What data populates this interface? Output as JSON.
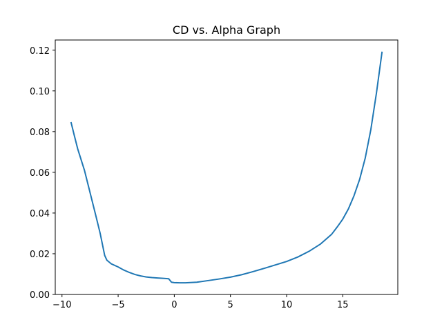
{
  "chart_data": {
    "type": "line",
    "title": "CD vs. Alpha Graph",
    "xlabel": "",
    "ylabel": "",
    "xlim": [
      -10.6,
      19.9
    ],
    "ylim": [
      0.0,
      0.125
    ],
    "x_ticks": [
      -10,
      -5,
      0,
      5,
      10,
      15
    ],
    "y_ticks": [
      0.0,
      0.02,
      0.04,
      0.06,
      0.08,
      0.1,
      0.12
    ],
    "x_tick_labels": [
      "−10",
      "−5",
      "0",
      "5",
      "10",
      "15"
    ],
    "y_tick_labels": [
      "0.00",
      "0.02",
      "0.04",
      "0.06",
      "0.08",
      "0.10",
      "0.12"
    ],
    "grid": false,
    "series": [
      {
        "color": "#1f77b4",
        "x": [
          -9.2,
          -8.9,
          -8.6,
          -8.0,
          -7.5,
          -7.0,
          -6.6,
          -6.2,
          -6.0,
          -5.6,
          -5.0,
          -4.5,
          -4.0,
          -3.5,
          -3.0,
          -2.5,
          -2.0,
          -1.5,
          -1.0,
          -0.5,
          -0.25,
          0.0,
          0.5,
          1.0,
          2.0,
          3.0,
          4.0,
          5.0,
          6.0,
          7.0,
          8.0,
          9.0,
          10.0,
          11.0,
          12.0,
          13.0,
          14.0,
          14.5,
          15.0,
          15.5,
          16.0,
          16.5,
          17.0,
          17.5,
          18.0,
          18.5
        ],
        "y": [
          0.0847,
          0.078,
          0.0715,
          0.061,
          0.05,
          0.039,
          0.03,
          0.0192,
          0.0168,
          0.015,
          0.0135,
          0.012,
          0.0108,
          0.0098,
          0.0091,
          0.0086,
          0.0083,
          0.0081,
          0.0079,
          0.0077,
          0.006,
          0.0058,
          0.0057,
          0.0057,
          0.006,
          0.0068,
          0.0076,
          0.0085,
          0.0097,
          0.0112,
          0.0128,
          0.0145,
          0.0162,
          0.0184,
          0.0212,
          0.0247,
          0.0295,
          0.0331,
          0.037,
          0.042,
          0.0485,
          0.0565,
          0.067,
          0.081,
          0.099,
          0.1193
        ]
      }
    ]
  }
}
